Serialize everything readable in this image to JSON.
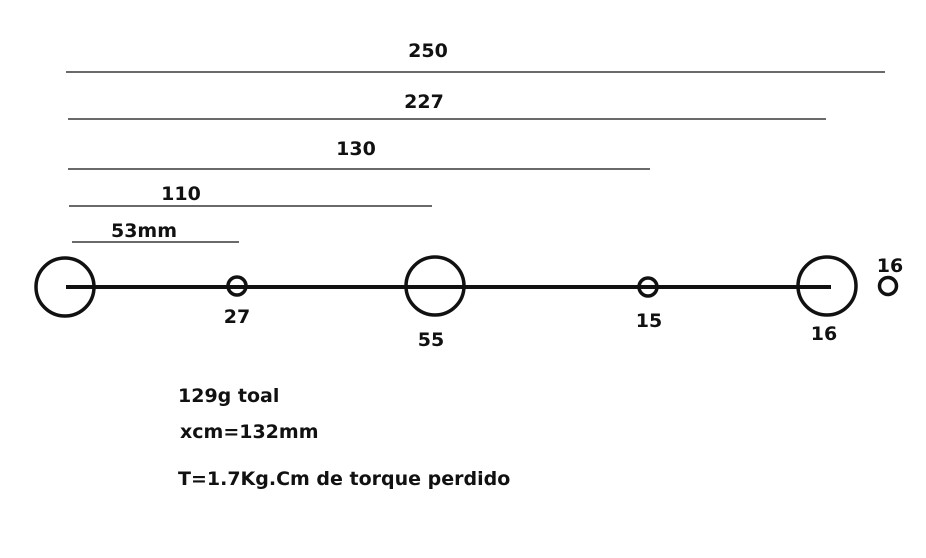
{
  "dimensions": [
    {
      "label": "250"
    },
    {
      "label": "227"
    },
    {
      "label": "130"
    },
    {
      "label": "110"
    },
    {
      "label": "53mm"
    }
  ],
  "masses": [
    {
      "label": "27"
    },
    {
      "label": "55"
    },
    {
      "label": "15"
    },
    {
      "label": "16"
    },
    {
      "label": "16"
    }
  ],
  "notes": {
    "total": "129g toal",
    "xcm": "xcm=132mm",
    "torque": "T=1.7Kg.Cm de torque perdido"
  },
  "colors": {
    "ink": "#111111",
    "background": "#ffffff"
  }
}
